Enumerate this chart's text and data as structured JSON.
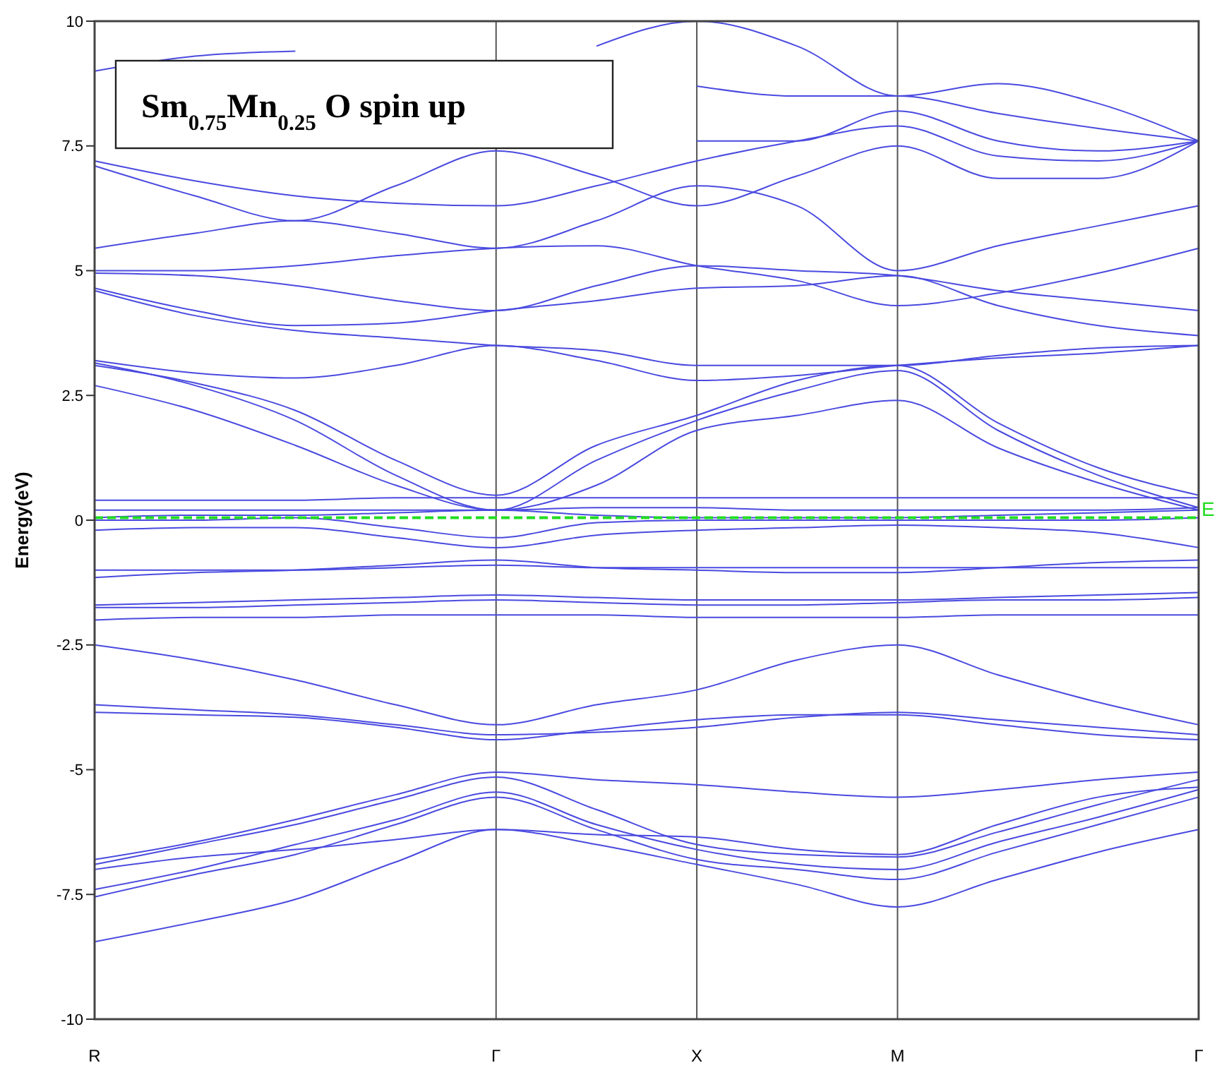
{
  "chart_data": {
    "type": "line",
    "title": "Sm$_{0.75}$Mn$_{0.25}$ O spin up",
    "ylabel": "Energy(eV)",
    "categories": [
      "R",
      null,
      null,
      null,
      "Γ",
      null,
      "X",
      null,
      "M",
      null,
      null,
      "Γ"
    ],
    "ylim": [
      -10,
      10
    ],
    "yticks": [
      10,
      7.5,
      5,
      2.5,
      0,
      -2.5,
      -5,
      -7.5,
      -10
    ],
    "grid": "x",
    "marker": "none",
    "line_style": "solid",
    "ref_lines": [
      {
        "axis": "y",
        "value": 0.05,
        "label": "E",
        "color": "#22dd22",
        "line_style": "dashed"
      }
    ],
    "series": [
      {
        "color": "#4a4ae0",
        "values": [
          -8.45,
          -8.05,
          -7.6,
          -6.85,
          -6.2,
          -6.5,
          -6.9,
          -7.3,
          -7.75,
          -7.2,
          -6.65,
          -6.2
        ]
      },
      {
        "color": "#4a4ae0",
        "values": [
          -7.55,
          -7.1,
          -6.7,
          -6.1,
          -5.55,
          -6.2,
          -6.8,
          -7.0,
          -7.2,
          -6.65,
          -6.1,
          -5.55
        ]
      },
      {
        "color": "#4a4ae0",
        "values": [
          -7.4,
          -7.0,
          -6.5,
          -6.0,
          -5.45,
          -6.1,
          -6.6,
          -6.9,
          -7.0,
          -6.45,
          -5.95,
          -5.4
        ]
      },
      {
        "color": "#4a4ae0",
        "values": [
          -6.9,
          -6.5,
          -6.1,
          -5.6,
          -5.15,
          -5.8,
          -6.5,
          -6.7,
          -6.75,
          -6.25,
          -5.7,
          -5.2
        ]
      },
      {
        "color": "#4a4ae0",
        "values": [
          -6.8,
          -6.45,
          -6.0,
          -5.5,
          -5.05,
          -5.2,
          -5.3,
          -5.45,
          -5.55,
          -5.4,
          -5.2,
          -5.05
        ]
      },
      {
        "color": "#4a4ae0",
        "values": [
          -7.0,
          -6.75,
          -6.6,
          -6.4,
          -6.2,
          -6.3,
          -6.35,
          -6.6,
          -6.7,
          -6.1,
          -5.55,
          -5.35
        ]
      },
      {
        "color": "#4a4ae0",
        "values": [
          -3.85,
          -3.9,
          -3.95,
          -4.15,
          -4.4,
          -4.2,
          -4.0,
          -3.9,
          -3.9,
          -4.1,
          -4.3,
          -4.4
        ]
      },
      {
        "color": "#4a4ae0",
        "values": [
          -3.7,
          -3.8,
          -3.9,
          -4.1,
          -4.3,
          -4.25,
          -4.15,
          -3.95,
          -3.85,
          -4.0,
          -4.15,
          -4.3
        ]
      },
      {
        "color": "#4a4ae0",
        "values": [
          -2.5,
          -2.8,
          -3.2,
          -3.7,
          -4.1,
          -3.7,
          -3.4,
          -2.8,
          -2.5,
          -3.1,
          -3.65,
          -4.1
        ]
      },
      {
        "color": "#4a4ae0",
        "values": [
          -2.0,
          -1.95,
          -1.95,
          -1.9,
          -1.9,
          -1.9,
          -1.95,
          -1.95,
          -1.95,
          -1.9,
          -1.9,
          -1.9
        ]
      },
      {
        "color": "#4a4ae0",
        "values": [
          -1.75,
          -1.75,
          -1.7,
          -1.65,
          -1.6,
          -1.65,
          -1.7,
          -1.7,
          -1.65,
          -1.6,
          -1.6,
          -1.55
        ]
      },
      {
        "color": "#4a4ae0",
        "values": [
          -1.7,
          -1.65,
          -1.6,
          -1.55,
          -1.5,
          -1.55,
          -1.6,
          -1.6,
          -1.6,
          -1.55,
          -1.5,
          -1.45
        ]
      },
      {
        "color": "#4a4ae0",
        "values": [
          -1.15,
          -1.05,
          -1.0,
          -0.9,
          -0.8,
          -0.95,
          -1.0,
          -1.05,
          -1.05,
          -0.95,
          -0.85,
          -0.8
        ]
      },
      {
        "color": "#4a4ae0",
        "values": [
          -1.0,
          -1.0,
          -1.0,
          -0.95,
          -0.9,
          -0.95,
          -0.95,
          -0.95,
          -0.95,
          -0.95,
          -0.95,
          -0.95
        ]
      },
      {
        "color": "#4a4ae0",
        "values": [
          -0.2,
          -0.15,
          -0.15,
          -0.35,
          -0.55,
          -0.3,
          -0.2,
          -0.15,
          -0.1,
          -0.15,
          -0.25,
          -0.55
        ]
      },
      {
        "color": "#4a4ae0",
        "values": [
          0.0,
          0.0,
          0.05,
          -0.15,
          -0.35,
          -0.05,
          0.0,
          0.0,
          0.0,
          0.0,
          0.0,
          0.05
        ]
      },
      {
        "color": "#4a4ae0",
        "values": [
          0.05,
          0.1,
          0.1,
          0.15,
          0.2,
          0.1,
          0.05,
          0.05,
          0.05,
          0.1,
          0.15,
          0.2
        ]
      },
      {
        "color": "#4a4ae0",
        "values": [
          0.2,
          0.2,
          0.2,
          0.2,
          0.2,
          0.25,
          0.25,
          0.2,
          0.2,
          0.2,
          0.2,
          0.25
        ]
      },
      {
        "color": "#4a4ae0",
        "values": [
          0.4,
          0.4,
          0.4,
          0.45,
          0.45,
          0.45,
          0.45,
          0.45,
          0.45,
          0.45,
          0.45,
          0.45
        ]
      },
      {
        "color": "#4a4ae0",
        "values": [
          2.7,
          2.2,
          1.5,
          0.7,
          0.2,
          0.7,
          1.8,
          2.1,
          2.4,
          1.45,
          0.75,
          0.2
        ]
      },
      {
        "color": "#4a4ae0",
        "values": [
          3.15,
          2.7,
          2.0,
          0.9,
          0.2,
          1.2,
          2.0,
          2.6,
          3.0,
          1.8,
          0.9,
          0.25
        ]
      },
      {
        "color": "#4a4ae0",
        "values": [
          3.1,
          2.75,
          2.2,
          1.2,
          0.5,
          1.5,
          2.1,
          2.8,
          3.1,
          1.95,
          1.05,
          0.5
        ]
      },
      {
        "color": "#4a4ae0",
        "values": [
          3.2,
          2.95,
          2.85,
          3.1,
          3.5,
          3.2,
          2.8,
          2.9,
          3.1,
          3.25,
          3.35,
          3.5
        ]
      },
      {
        "color": "#4a4ae0",
        "values": [
          4.6,
          4.1,
          3.8,
          3.65,
          3.5,
          3.4,
          3.1,
          3.1,
          3.1,
          3.3,
          3.45,
          3.5
        ]
      },
      {
        "color": "#4a4ae0",
        "values": [
          4.65,
          4.2,
          3.9,
          3.95,
          4.2,
          4.4,
          4.65,
          4.7,
          4.9,
          4.3,
          3.9,
          3.7
        ]
      },
      {
        "color": "#4a4ae0",
        "values": [
          4.95,
          4.9,
          4.7,
          4.4,
          4.2,
          4.7,
          5.1,
          5.0,
          4.9,
          4.6,
          4.4,
          4.2
        ]
      },
      {
        "color": "#4a4ae0",
        "values": [
          5.0,
          5.0,
          5.1,
          5.3,
          5.45,
          5.5,
          5.1,
          4.8,
          4.3,
          4.55,
          4.95,
          5.45
        ]
      },
      {
        "color": "#4a4ae0",
        "values": [
          5.45,
          5.75,
          6.0,
          5.75,
          5.45,
          6.0,
          6.7,
          6.3,
          5.0,
          5.5,
          5.9,
          6.3
        ]
      },
      {
        "color": "#4a4ae0",
        "values": [
          7.1,
          6.5,
          6.0,
          6.7,
          7.4,
          6.9,
          6.3,
          6.9,
          7.5,
          6.85,
          6.85,
          7.6
        ]
      },
      {
        "color": "#4a4ae0",
        "values": [
          7.2,
          6.8,
          6.5,
          6.35,
          6.3,
          6.7,
          7.2,
          7.6,
          7.9,
          7.3,
          7.2,
          7.6
        ]
      },
      {
        "color": "#4a4ae0",
        "values": [
          null,
          null,
          null,
          null,
          null,
          null,
          7.6,
          7.6,
          8.2,
          7.6,
          7.4,
          7.6
        ]
      },
      {
        "color": "#4a4ae0",
        "values": [
          9.0,
          9.3,
          9.4,
          null,
          null,
          null,
          8.7,
          8.5,
          8.5,
          8.15,
          7.85,
          7.6
        ]
      },
      {
        "color": "#4a4ae0",
        "values": [
          null,
          null,
          null,
          null,
          null,
          9.5,
          10.0,
          9.5,
          8.5,
          8.75,
          8.35,
          7.6
        ]
      }
    ]
  }
}
